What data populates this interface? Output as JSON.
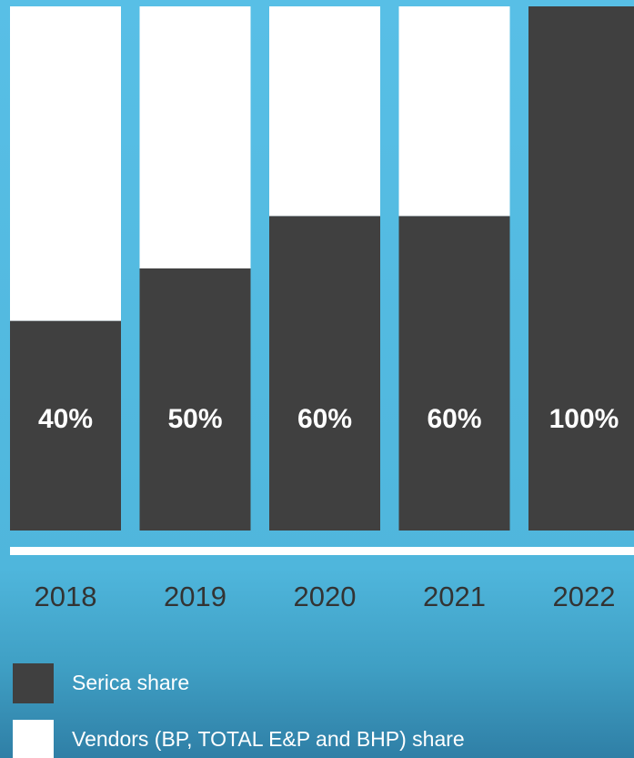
{
  "chart_data": {
    "type": "stacked-bar",
    "categories": [
      "2018",
      "2019",
      "2020",
      "2021",
      "2022"
    ],
    "series": [
      {
        "name": "Serica share",
        "color": "#404040",
        "values": [
          40,
          50,
          60,
          60,
          100
        ],
        "value_labels": [
          "40%",
          "50%",
          "60%",
          "60%",
          "100%"
        ]
      },
      {
        "name": "Vendors (BP, TOTAL E&P and BHP) share",
        "color": "#ffffff",
        "values": [
          60,
          50,
          40,
          40,
          0
        ]
      }
    ],
    "ylim": [
      0,
      100
    ]
  }
}
